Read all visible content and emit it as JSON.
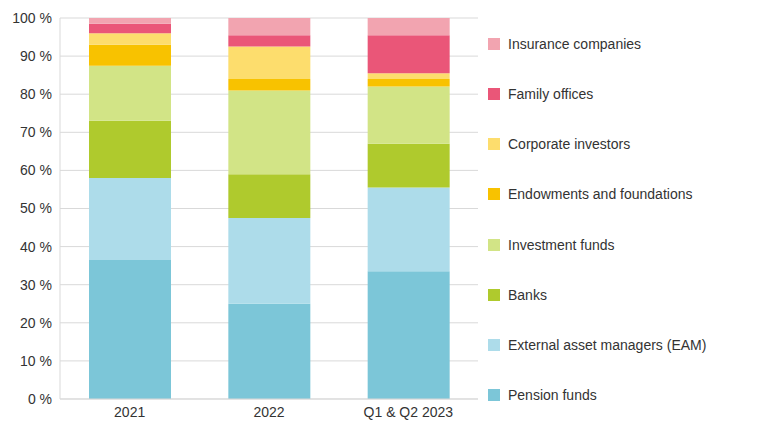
{
  "chart_data": {
    "type": "bar",
    "stacked": true,
    "grid": true,
    "legend": "right",
    "categories": [
      "2021",
      "2022",
      "Q1 & Q2 2023"
    ],
    "series": [
      {
        "name": "Pension funds",
        "color": "#7cc6d8",
        "values": [
          36.5,
          25,
          33.5
        ]
      },
      {
        "name": "External asset managers (EAM)",
        "color": "#addcea",
        "values": [
          21.5,
          22.5,
          22
        ]
      },
      {
        "name": "Banks",
        "color": "#afca2d",
        "values": [
          15,
          11.5,
          11.5
        ]
      },
      {
        "name": "Investment funds",
        "color": "#d2e486",
        "values": [
          14.5,
          22,
          15
        ]
      },
      {
        "name": "Endowments and foundations",
        "color": "#f8c200",
        "values": [
          5.5,
          3,
          2
        ]
      },
      {
        "name": "Corporate investors",
        "color": "#fddd6d",
        "values": [
          3,
          8.5,
          1.5
        ]
      },
      {
        "name": "Family offices",
        "color": "#ea5678",
        "values": [
          2.5,
          3,
          10
        ]
      },
      {
        "name": "Insurance companies",
        "color": "#f2a4b0",
        "values": [
          1.5,
          4.5,
          4.5
        ]
      }
    ],
    "ylim": [
      0,
      100
    ],
    "yticks": [
      {
        "value": 0,
        "label": "0 %"
      },
      {
        "value": 10,
        "label": "10 %"
      },
      {
        "value": 20,
        "label": "20 %"
      },
      {
        "value": 30,
        "label": "30 %"
      },
      {
        "value": 40,
        "label": "40 %"
      },
      {
        "value": 50,
        "label": "50 %"
      },
      {
        "value": 60,
        "label": "60 %"
      },
      {
        "value": 70,
        "label": "70 %"
      },
      {
        "value": 80,
        "label": "80 %"
      },
      {
        "value": 90,
        "label": "90 %"
      },
      {
        "value": 100,
        "label": "100 %"
      }
    ]
  }
}
